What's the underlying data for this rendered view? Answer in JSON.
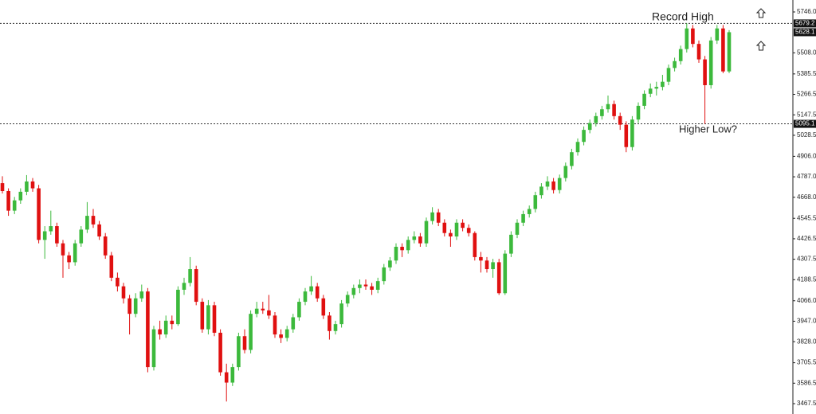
{
  "chart_data": {
    "type": "candlestick",
    "up_color": "#3cb93c",
    "down_color": "#e01010",
    "ylim": [
      3467.5,
      5746.0
    ],
    "yticks": [
      {
        "value": 5746.0,
        "label": "5746.0"
      },
      {
        "value": 5508.0,
        "label": "5508.0"
      },
      {
        "value": 5385.5,
        "label": "5385.5"
      },
      {
        "value": 5266.5,
        "label": "5266.5"
      },
      {
        "value": 5147.5,
        "label": "5147.5"
      },
      {
        "value": 5028.5,
        "label": "5028.5"
      },
      {
        "value": 4906.0,
        "label": "4906.0"
      },
      {
        "value": 4787.0,
        "label": "4787.0"
      },
      {
        "value": 4668.0,
        "label": "4668.0"
      },
      {
        "value": 4545.5,
        "label": "4545.5"
      },
      {
        "value": 4426.5,
        "label": "4426.5"
      },
      {
        "value": 4307.5,
        "label": "4307.5"
      },
      {
        "value": 4188.5,
        "label": "4188.5"
      },
      {
        "value": 4066.0,
        "label": "4066.0"
      },
      {
        "value": 3947.0,
        "label": "3947.0"
      },
      {
        "value": 3828.0,
        "label": "3828.0"
      },
      {
        "value": 3705.5,
        "label": "3705.5"
      },
      {
        "value": 3586.5,
        "label": "3586.5"
      },
      {
        "value": 3467.5,
        "label": "3467.5"
      }
    ],
    "levels": [
      {
        "value": 5679.2,
        "label": "5679.2"
      },
      {
        "value": 5095.1,
        "label": "5095.1"
      }
    ],
    "last_price": {
      "value": 5628.1,
      "label": "5628.1"
    },
    "annotations": [
      "Record High",
      "Higher Low?"
    ],
    "candles": [
      [
        4750,
        4790,
        4690,
        4704
      ],
      [
        4704,
        4720,
        4560,
        4590
      ],
      [
        4590,
        4670,
        4570,
        4650
      ],
      [
        4650,
        4720,
        4630,
        4700
      ],
      [
        4700,
        4797,
        4680,
        4760
      ],
      [
        4760,
        4780,
        4700,
        4720
      ],
      [
        4720,
        4740,
        4400,
        4420
      ],
      [
        4420,
        4500,
        4310,
        4470
      ],
      [
        4470,
        4590,
        4450,
        4500
      ],
      [
        4500,
        4520,
        4380,
        4400
      ],
      [
        4400,
        4420,
        4200,
        4330
      ],
      [
        4330,
        4350,
        4250,
        4290
      ],
      [
        4290,
        4420,
        4270,
        4400
      ],
      [
        4400,
        4500,
        4380,
        4480
      ],
      [
        4480,
        4640,
        4460,
        4560
      ],
      [
        4560,
        4600,
        4490,
        4510
      ],
      [
        4510,
        4530,
        4420,
        4440
      ],
      [
        4440,
        4460,
        4310,
        4330
      ],
      [
        4330,
        4350,
        4180,
        4200
      ],
      [
        4200,
        4230,
        4120,
        4150
      ],
      [
        4150,
        4170,
        4050,
        4080
      ],
      [
        4080,
        4100,
        3870,
        3990
      ],
      [
        3990,
        4110,
        3970,
        4080
      ],
      [
        4080,
        4160,
        4060,
        4120
      ],
      [
        4120,
        4140,
        3650,
        3680
      ],
      [
        3680,
        3920,
        3660,
        3900
      ],
      [
        3900,
        3950,
        3840,
        3870
      ],
      [
        3870,
        3980,
        3850,
        3950
      ],
      [
        3950,
        3980,
        3900,
        3930
      ],
      [
        3930,
        4150,
        3920,
        4130
      ],
      [
        4130,
        4200,
        4100,
        4170
      ],
      [
        4170,
        4320,
        4150,
        4250
      ],
      [
        4250,
        4270,
        4040,
        4060
      ],
      [
        4060,
        4080,
        3880,
        3900
      ],
      [
        3900,
        4070,
        3870,
        4040
      ],
      [
        4040,
        4060,
        3860,
        3880
      ],
      [
        3880,
        3900,
        3630,
        3650
      ],
      [
        3650,
        3700,
        3480,
        3590
      ],
      [
        3590,
        3700,
        3570,
        3680
      ],
      [
        3680,
        3880,
        3660,
        3860
      ],
      [
        3860,
        3900,
        3760,
        3780
      ],
      [
        3780,
        4010,
        3760,
        3990
      ],
      [
        3990,
        4060,
        3970,
        4020
      ],
      [
        4020,
        4060,
        3990,
        4010
      ],
      [
        4010,
        4100,
        3960,
        3980
      ],
      [
        3980,
        4000,
        3850,
        3870
      ],
      [
        3870,
        3900,
        3820,
        3850
      ],
      [
        3850,
        3920,
        3830,
        3900
      ],
      [
        3900,
        3990,
        3880,
        3970
      ],
      [
        3970,
        4080,
        3950,
        4060
      ],
      [
        4060,
        4140,
        4040,
        4120
      ],
      [
        4120,
        4210,
        4100,
        4150
      ],
      [
        4150,
        4170,
        4060,
        4080
      ],
      [
        4080,
        4100,
        3960,
        3980
      ],
      [
        3980,
        4000,
        3840,
        3890
      ],
      [
        3890,
        3950,
        3870,
        3930
      ],
      [
        3930,
        4070,
        3910,
        4050
      ],
      [
        4050,
        4120,
        4030,
        4100
      ],
      [
        4100,
        4160,
        4080,
        4140
      ],
      [
        4140,
        4190,
        4110,
        4160
      ],
      [
        4160,
        4190,
        4130,
        4150
      ],
      [
        4150,
        4170,
        4100,
        4130
      ],
      [
        4130,
        4200,
        4110,
        4180
      ],
      [
        4180,
        4280,
        4160,
        4260
      ],
      [
        4260,
        4320,
        4240,
        4300
      ],
      [
        4300,
        4400,
        4280,
        4380
      ],
      [
        4380,
        4400,
        4320,
        4360
      ],
      [
        4360,
        4440,
        4340,
        4420
      ],
      [
        4420,
        4470,
        4400,
        4440
      ],
      [
        4440,
        4460,
        4380,
        4400
      ],
      [
        4400,
        4550,
        4380,
        4530
      ],
      [
        4530,
        4610,
        4510,
        4580
      ],
      [
        4580,
        4600,
        4500,
        4520
      ],
      [
        4520,
        4540,
        4440,
        4460
      ],
      [
        4460,
        4480,
        4380,
        4440
      ],
      [
        4440,
        4540,
        4420,
        4520
      ],
      [
        4520,
        4540,
        4470,
        4490
      ],
      [
        4490,
        4510,
        4440,
        4460
      ],
      [
        4460,
        4470,
        4300,
        4320
      ],
      [
        4320,
        4350,
        4230,
        4300
      ],
      [
        4300,
        4320,
        4230,
        4250
      ],
      [
        4250,
        4310,
        4200,
        4290
      ],
      [
        4290,
        4310,
        4100,
        4110
      ],
      [
        4110,
        4360,
        4100,
        4340
      ],
      [
        4340,
        4470,
        4320,
        4450
      ],
      [
        4450,
        4540,
        4430,
        4520
      ],
      [
        4520,
        4590,
        4500,
        4570
      ],
      [
        4570,
        4620,
        4550,
        4600
      ],
      [
        4600,
        4700,
        4580,
        4680
      ],
      [
        4680,
        4750,
        4660,
        4730
      ],
      [
        4730,
        4790,
        4710,
        4760
      ],
      [
        4760,
        4780,
        4690,
        4710
      ],
      [
        4710,
        4800,
        4690,
        4780
      ],
      [
        4780,
        4870,
        4760,
        4850
      ],
      [
        4850,
        4950,
        4830,
        4930
      ],
      [
        4930,
        5010,
        4910,
        4990
      ],
      [
        4990,
        5080,
        4970,
        5060
      ],
      [
        5060,
        5120,
        5040,
        5100
      ],
      [
        5100,
        5160,
        5080,
        5140
      ],
      [
        5140,
        5200,
        5120,
        5180
      ],
      [
        5180,
        5260,
        5160,
        5210
      ],
      [
        5210,
        5230,
        5120,
        5140
      ],
      [
        5140,
        5160,
        5060,
        5090
      ],
      [
        5090,
        5110,
        4930,
        4960
      ],
      [
        4960,
        5140,
        4940,
        5120
      ],
      [
        5120,
        5220,
        5100,
        5200
      ],
      [
        5200,
        5290,
        5180,
        5270
      ],
      [
        5270,
        5330,
        5250,
        5300
      ],
      [
        5300,
        5340,
        5260,
        5310
      ],
      [
        5310,
        5380,
        5290,
        5340
      ],
      [
        5340,
        5440,
        5320,
        5420
      ],
      [
        5420,
        5480,
        5400,
        5460
      ],
      [
        5460,
        5550,
        5440,
        5530
      ],
      [
        5530,
        5680,
        5510,
        5650
      ],
      [
        5650,
        5670,
        5540,
        5560
      ],
      [
        5560,
        5580,
        5450,
        5470
      ],
      [
        5470,
        5490,
        5095,
        5320
      ],
      [
        5320,
        5600,
        5300,
        5580
      ],
      [
        5580,
        5670,
        5560,
        5650
      ],
      [
        5650,
        5670,
        5390,
        5400
      ],
      [
        5400,
        5640,
        5390,
        5628.1
      ]
    ]
  }
}
